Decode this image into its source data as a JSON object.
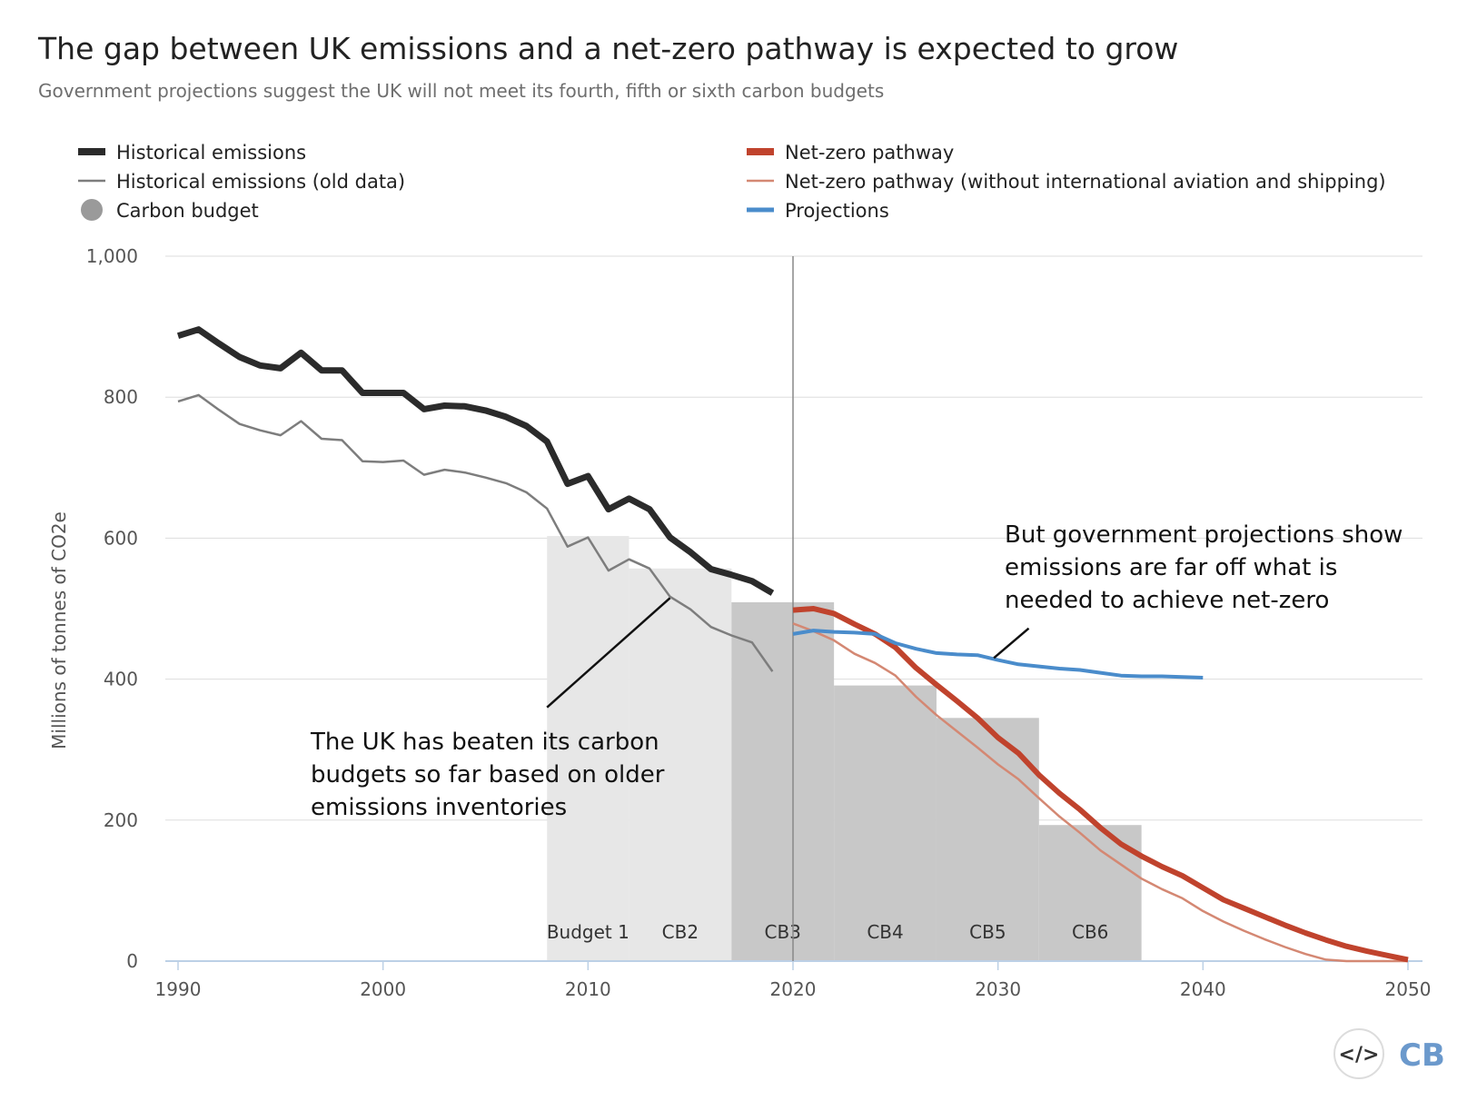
{
  "colors": {
    "historical": "#2b2b2b",
    "historical_old": "#7d7d7d",
    "carbon_budget_light": "#e7e7e7",
    "carbon_budget_dark": "#c8c8c8",
    "carbon_budget_legend": "#9a9a9a",
    "net_zero": "#c0432d",
    "net_zero_wo_ias": "#d48873",
    "projections": "#4a8ccb",
    "grid": "#dddddd",
    "divider": "#888888",
    "logo": "#6b99cc"
  },
  "chart_data": {
    "type": "line",
    "title": "The gap between UK emissions and a net-zero pathway is expected to grow",
    "subtitle": "Government projections suggest the UK will not meet its fourth, fifth or sixth carbon budgets",
    "xlabel": "",
    "ylabel": "Millions of tonnes of CO2e",
    "xlim": [
      1990,
      2050
    ],
    "ylim": [
      0,
      1000
    ],
    "x_ticks": [
      1990,
      2000,
      2010,
      2020,
      2030,
      2040,
      2050
    ],
    "y_ticks": [
      0,
      200,
      400,
      600,
      800,
      1000
    ],
    "y_tick_labels": [
      "0",
      "200",
      "400",
      "600",
      "800",
      "1,000"
    ],
    "vertical_marker_x": 2020,
    "legend": [
      {
        "key": "historical",
        "label": "Historical emissions",
        "symbol": "thick-line"
      },
      {
        "key": "historical_old",
        "label": "Historical emissions (old data)",
        "symbol": "thin-line"
      },
      {
        "key": "carbon_budget",
        "label": "Carbon budget",
        "symbol": "circle"
      },
      {
        "key": "net_zero",
        "label": "Net-zero pathway",
        "symbol": "thick-line"
      },
      {
        "key": "net_zero_wo_ias",
        "label": "Net-zero pathway (without international aviation and shipping)",
        "symbol": "thin-line"
      },
      {
        "key": "projections",
        "label": "Projections",
        "symbol": "medium-line"
      }
    ],
    "carbon_budgets": [
      {
        "label": "Budget 1",
        "start": 2008,
        "end": 2012,
        "value": 603,
        "shade": "light"
      },
      {
        "label": "CB2",
        "start": 2012,
        "end": 2017,
        "value": 557,
        "shade": "light"
      },
      {
        "label": "CB3",
        "start": 2017,
        "end": 2022,
        "value": 509,
        "shade": "dark"
      },
      {
        "label": "CB4",
        "start": 2022,
        "end": 2027,
        "value": 391,
        "shade": "dark"
      },
      {
        "label": "CB5",
        "start": 2027,
        "end": 2032,
        "value": 345,
        "shade": "dark"
      },
      {
        "label": "CB6",
        "start": 2032,
        "end": 2037,
        "value": 193,
        "shade": "dark"
      }
    ],
    "series": [
      {
        "key": "historical_old",
        "name": "Historical emissions (old data)",
        "x": [
          1990,
          1991,
          1992,
          1993,
          1994,
          1995,
          1996,
          1997,
          1998,
          1999,
          2000,
          2001,
          2002,
          2003,
          2004,
          2005,
          2006,
          2007,
          2008,
          2009,
          2010,
          2011,
          2012,
          2013,
          2014,
          2015,
          2016,
          2017,
          2018,
          2019
        ],
        "values": [
          794,
          803,
          782,
          762,
          753,
          746,
          766,
          741,
          739,
          709,
          708,
          710,
          690,
          697,
          693,
          686,
          678,
          665,
          642,
          588,
          601,
          554,
          570,
          557,
          517,
          499,
          474,
          462,
          452,
          411
        ]
      },
      {
        "key": "historical",
        "name": "Historical emissions",
        "x": [
          1990,
          1991,
          1992,
          1993,
          1994,
          1995,
          1996,
          1997,
          1998,
          1999,
          2000,
          2001,
          2002,
          2003,
          2004,
          2005,
          2006,
          2007,
          2008,
          2009,
          2010,
          2011,
          2012,
          2013,
          2014,
          2015,
          2016,
          2017,
          2018,
          2019
        ],
        "values": [
          887,
          896,
          876,
          857,
          845,
          841,
          863,
          838,
          838,
          806,
          806,
          806,
          783,
          788,
          787,
          781,
          772,
          759,
          737,
          677,
          688,
          641,
          656,
          641,
          601,
          580,
          556,
          548,
          539,
          522
        ]
      },
      {
        "key": "net_zero_wo_ias",
        "name": "Net-zero pathway (without international aviation and shipping)",
        "x": [
          2020,
          2021,
          2022,
          2023,
          2024,
          2025,
          2026,
          2027,
          2028,
          2029,
          2030,
          2031,
          2032,
          2033,
          2034,
          2035,
          2036,
          2037,
          2038,
          2039,
          2040,
          2041,
          2042,
          2043,
          2044,
          2045,
          2046,
          2047,
          2048,
          2049,
          2050
        ],
        "values": [
          479,
          468,
          455,
          436,
          423,
          405,
          375,
          349,
          326,
          303,
          279,
          258,
          231,
          205,
          182,
          157,
          137,
          117,
          102,
          89,
          71,
          56,
          43,
          31,
          20,
          10,
          2,
          0,
          0,
          0,
          0
        ]
      },
      {
        "key": "net_zero",
        "name": "Net-zero pathway",
        "x": [
          2020,
          2021,
          2022,
          2023,
          2024,
          2025,
          2026,
          2027,
          2028,
          2029,
          2030,
          2031,
          2032,
          2033,
          2034,
          2035,
          2036,
          2037,
          2038,
          2039,
          2040,
          2041,
          2042,
          2043,
          2044,
          2045,
          2046,
          2047,
          2048,
          2049,
          2050
        ],
        "values": [
          498,
          500,
          493,
          478,
          464,
          445,
          416,
          392,
          369,
          345,
          317,
          295,
          264,
          238,
          215,
          189,
          166,
          149,
          134,
          121,
          104,
          87,
          75,
          63,
          51,
          40,
          30,
          21,
          14,
          8,
          2
        ]
      },
      {
        "key": "projections",
        "name": "Projections",
        "x": [
          2020,
          2021,
          2022,
          2023,
          2024,
          2025,
          2026,
          2027,
          2028,
          2029,
          2030,
          2031,
          2032,
          2033,
          2034,
          2035,
          2036,
          2037,
          2038,
          2039,
          2040
        ],
        "values": [
          464,
          469,
          467,
          466,
          464,
          451,
          443,
          437,
          435,
          434,
          427,
          421,
          418,
          415,
          413,
          409,
          405,
          404,
          404,
          403,
          402
        ]
      }
    ],
    "annotations": [
      {
        "lines": [
          "The UK has beaten its carbon",
          "budgets so far based on older",
          "emissions inventories"
        ],
        "pointer_to": {
          "x": 2014,
          "y": 515
        },
        "pointer_from": {
          "x": 2008,
          "y": 360
        }
      },
      {
        "lines": [
          "But government projections show",
          "emissions are far off what is",
          "needed to achieve net-zero"
        ],
        "pointer_to": {
          "x": 2029.8,
          "y": 430
        },
        "pointer_from": {
          "x": 2031.5,
          "y": 472
        }
      }
    ]
  },
  "logo": {
    "symbol": "</>",
    "text": "CB"
  }
}
